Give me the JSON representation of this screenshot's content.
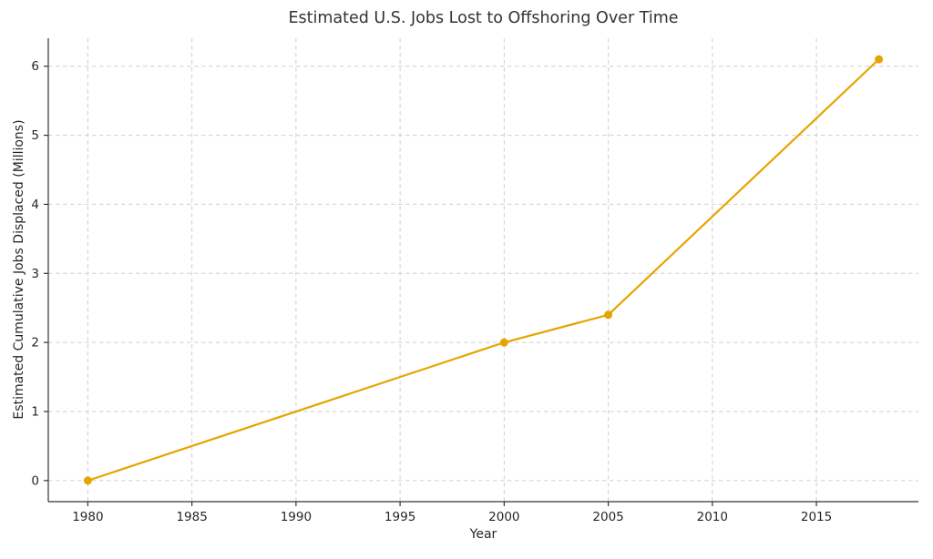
{
  "chart_data": {
    "type": "line",
    "title": "Estimated U.S. Jobs Lost to Offshoring Over Time",
    "xlabel": "Year",
    "ylabel": "Estimated Cumulative Jobs Displaced (Millions)",
    "x": [
      1980,
      2000,
      2005,
      2018
    ],
    "y": [
      0.0,
      2.0,
      2.4,
      6.1
    ],
    "xticks": [
      1980,
      1985,
      1990,
      1995,
      2000,
      2005,
      2010,
      2015
    ],
    "yticks": [
      0,
      1,
      2,
      3,
      4,
      5,
      6
    ],
    "xlim": [
      1978.1,
      2019.9
    ],
    "ylim": [
      -0.305,
      6.405
    ],
    "grid": true,
    "grid_style": "dashed",
    "legend_position": "none",
    "marker": "circle",
    "colors": {
      "line": "#E6A400",
      "marker": "#E6A400",
      "grid": "#CFCFCF",
      "spine": "#333333",
      "text": "#262626",
      "background": "#FFFFFF"
    }
  }
}
